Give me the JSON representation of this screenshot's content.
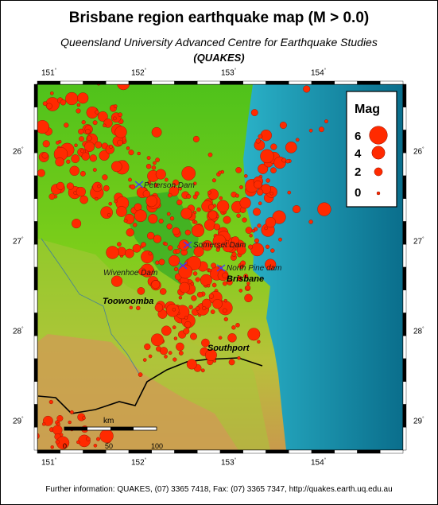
{
  "title": "Brisbane region earthquake map (M > 0.0)",
  "subtitle": "Queensland University Advanced Centre for Earthquake Studies",
  "subtitle2": "(QUAKES)",
  "footer": "Further information: QUAKES, (07) 3365 7418, Fax: (07) 3365 7347, http://quakes.earth.uq.edu.au",
  "axes": {
    "lon_labels": [
      "151",
      "152",
      "153",
      "154"
    ],
    "lat_labels": [
      "26",
      "27",
      "28",
      "29"
    ],
    "degree_mark": "°"
  },
  "legend": {
    "title": "Mag",
    "entries": [
      {
        "label": "6",
        "mag": 6
      },
      {
        "label": "4",
        "mag": 4
      },
      {
        "label": "2",
        "mag": 2
      },
      {
        "label": "0",
        "mag": 0
      }
    ]
  },
  "places": {
    "cities": [
      "Toowoomba",
      "Brisbane",
      "Southport"
    ],
    "dams": [
      "Peterson Dam",
      "Somerset Dam",
      "North Pine dam",
      "Wivenhoe Dam"
    ]
  },
  "scale_bar": {
    "unit": "km",
    "labels": [
      "0",
      "50",
      "100"
    ]
  },
  "colors": {
    "quake_fill": "#ff2a00",
    "quake_stroke": "#8a1000",
    "sea_deep": "#0a6e8c",
    "sea_shallow": "#bff7ff",
    "land_low": "#1fae1f",
    "land_high": "#d49a55",
    "dam_marker": "#3a3aff"
  }
}
